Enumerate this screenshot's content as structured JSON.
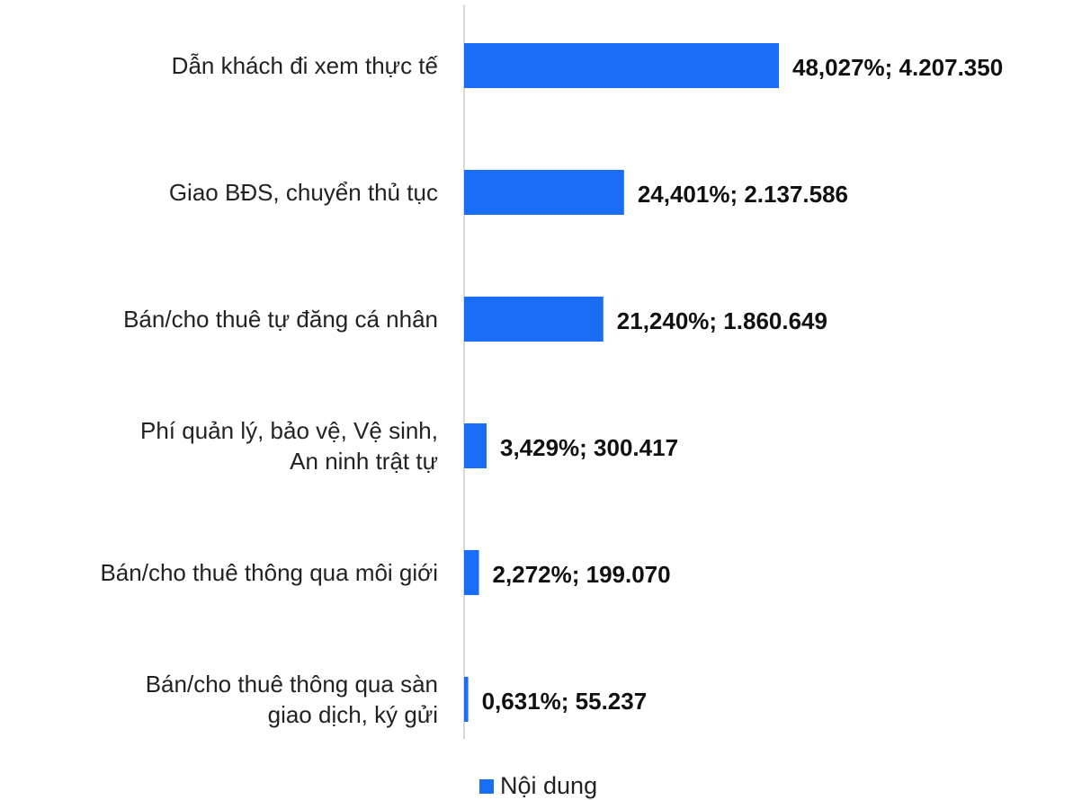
{
  "chart_data": {
    "type": "barh",
    "categories": [
      "Dẫn khách đi xem thực tế",
      "Giao BĐS, chuyển thủ tục",
      "Bán/cho thuê tự đăng cá nhân",
      "Phí quản lý, bảo vệ, Vệ sinh,\nAn ninh trật tự",
      "Bán/cho thuê thông qua môi giới",
      "Bán/cho thuê thông qua sàn\ngiao dịch, ký gửi"
    ],
    "series": [
      {
        "name": "Nội dung",
        "color": "#1a6ef5",
        "values": [
          4207350,
          2137586,
          1860649,
          300417,
          199070,
          55237
        ],
        "value_labels": [
          "48,027%; 4.207.350",
          "24,401%; 2.137.586",
          "21,240%; 1.860.649",
          "3,429%; 300.417",
          "2,272%; 199.070",
          "0,631%; 55.237"
        ]
      }
    ],
    "legend": "bottom"
  }
}
